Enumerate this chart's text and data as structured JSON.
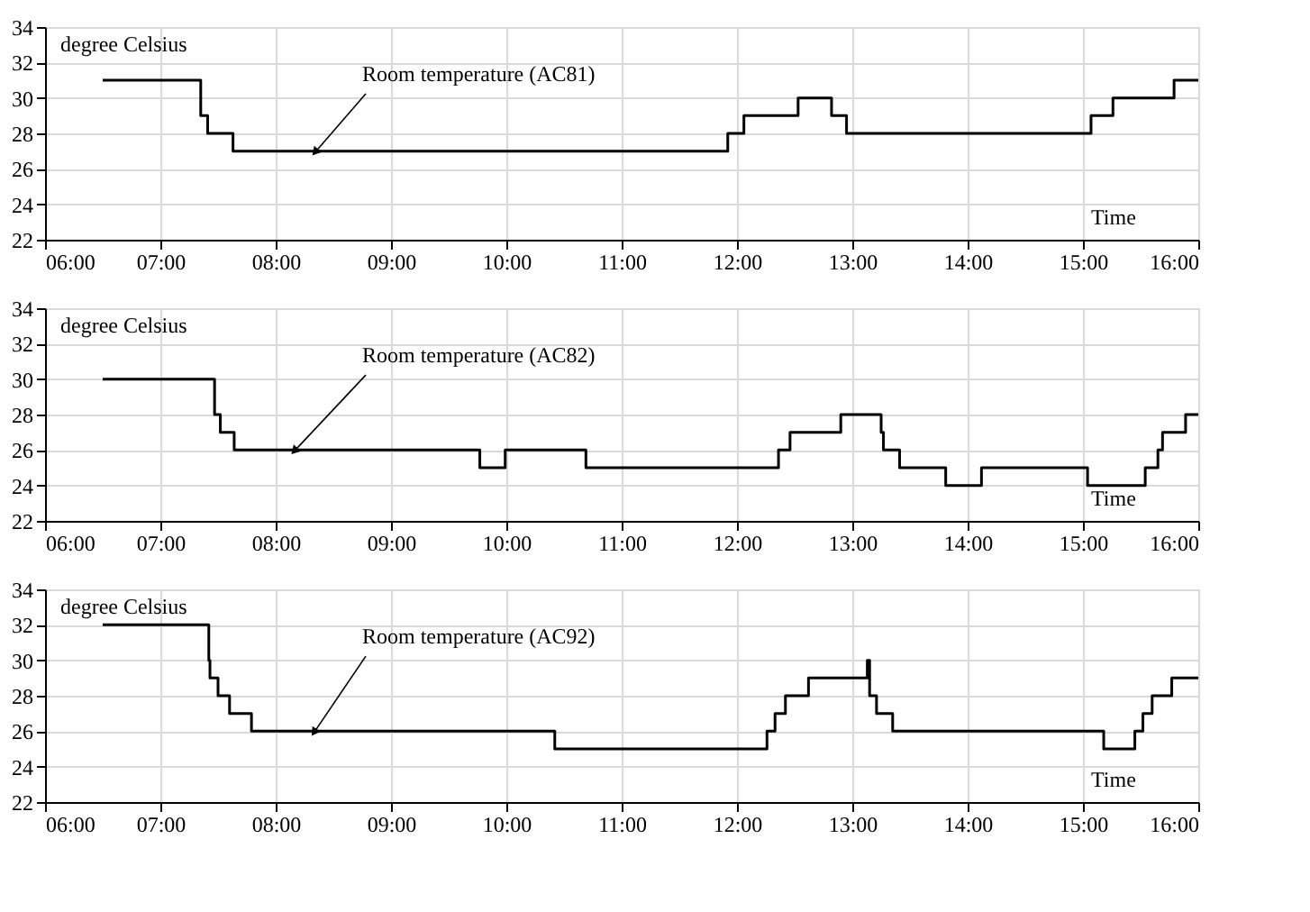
{
  "chart_data": [
    {
      "type": "step",
      "ylabel": "degree Celsius",
      "xlabel": "Time",
      "xlim": [
        6,
        16
      ],
      "xticks": [
        {
          "value": 6,
          "label": "06:00"
        },
        {
          "value": 7,
          "label": "07:00"
        },
        {
          "value": 8,
          "label": "08:00"
        },
        {
          "value": 9,
          "label": "09:00"
        },
        {
          "value": 10,
          "label": "10:00"
        },
        {
          "value": 11,
          "label": "11:00"
        },
        {
          "value": 12,
          "label": "12:00"
        },
        {
          "value": 13,
          "label": "13:00"
        },
        {
          "value": 14,
          "label": "14:00"
        },
        {
          "value": 15,
          "label": "15:00"
        },
        {
          "value": 16,
          "label": "16:00"
        }
      ],
      "ylim": [
        22,
        34
      ],
      "yticks": [
        22,
        24,
        26,
        28,
        30,
        32,
        34
      ],
      "grid": true,
      "series": [
        {
          "color": "#000000",
          "x": [
            6.5,
            7.35,
            7.41,
            7.63,
            11.92,
            12.06,
            12.53,
            12.82,
            12.95,
            15.07,
            15.26,
            15.79,
            16.0
          ],
          "values": [
            31,
            29,
            28,
            27,
            28,
            29,
            30,
            29,
            28,
            29,
            30,
            31,
            31
          ]
        }
      ],
      "annotations": [
        {
          "text": "Room temperature (AC81)",
          "x": 8.35,
          "y": 27
        }
      ]
    },
    {
      "type": "step",
      "ylabel": "degree Celsius",
      "xlabel": "Time",
      "xlim": [
        6,
        16
      ],
      "xticks": [
        {
          "value": 6,
          "label": "06:00"
        },
        {
          "value": 7,
          "label": "07:00"
        },
        {
          "value": 8,
          "label": "08:00"
        },
        {
          "value": 9,
          "label": "09:00"
        },
        {
          "value": 10,
          "label": "10:00"
        },
        {
          "value": 11,
          "label": "11:00"
        },
        {
          "value": 12,
          "label": "12:00"
        },
        {
          "value": 13,
          "label": "13:00"
        },
        {
          "value": 14,
          "label": "14:00"
        },
        {
          "value": 15,
          "label": "15:00"
        },
        {
          "value": 16,
          "label": "16:00"
        }
      ],
      "ylim": [
        22,
        34
      ],
      "yticks": [
        22,
        24,
        26,
        28,
        30,
        32,
        34
      ],
      "grid": true,
      "series": [
        {
          "color": "#000000",
          "x": [
            6.5,
            7.47,
            7.52,
            7.64,
            9.77,
            9.99,
            10.69,
            12.36,
            12.46,
            12.9,
            13.25,
            13.27,
            13.41,
            13.81,
            14.12,
            15.04,
            15.54,
            15.65,
            15.69,
            15.89,
            16.0
          ],
          "values": [
            30,
            28,
            27,
            26,
            25,
            26,
            25,
            26,
            27,
            28,
            27,
            26,
            25,
            24,
            25,
            24,
            25,
            26,
            27,
            28,
            28
          ]
        }
      ],
      "annotations": [
        {
          "text": "Room temperature (AC82)",
          "x": 8.17,
          "y": 26
        }
      ]
    },
    {
      "type": "step",
      "ylabel": "degree Celsius",
      "xlabel": "Time",
      "xlim": [
        6,
        16
      ],
      "xticks": [
        {
          "value": 6,
          "label": "06:00"
        },
        {
          "value": 7,
          "label": "07:00"
        },
        {
          "value": 8,
          "label": "08:00"
        },
        {
          "value": 9,
          "label": "09:00"
        },
        {
          "value": 10,
          "label": "10:00"
        },
        {
          "value": 11,
          "label": "11:00"
        },
        {
          "value": 12,
          "label": "12:00"
        },
        {
          "value": 13,
          "label": "13:00"
        },
        {
          "value": 14,
          "label": "14:00"
        },
        {
          "value": 15,
          "label": "15:00"
        },
        {
          "value": 16,
          "label": "16:00"
        }
      ],
      "ylim": [
        22,
        34
      ],
      "yticks": [
        22,
        24,
        26,
        28,
        30,
        32,
        34
      ],
      "grid": true,
      "series": [
        {
          "color": "#000000",
          "x": [
            6.5,
            7.42,
            7.43,
            7.5,
            7.6,
            7.79,
            10.42,
            12.26,
            12.33,
            12.42,
            12.62,
            13.13,
            13.15,
            13.21,
            13.35,
            15.18,
            15.45,
            15.52,
            15.6,
            15.77,
            16.0
          ],
          "values": [
            32,
            30,
            29,
            28,
            27,
            26,
            25,
            26,
            27,
            28,
            29,
            30,
            28,
            27,
            26,
            25,
            26,
            27,
            28,
            29,
            29
          ]
        }
      ],
      "annotations": [
        {
          "text": "Room temperature (AC92)",
          "x": 8.34,
          "y": 26
        }
      ]
    }
  ]
}
